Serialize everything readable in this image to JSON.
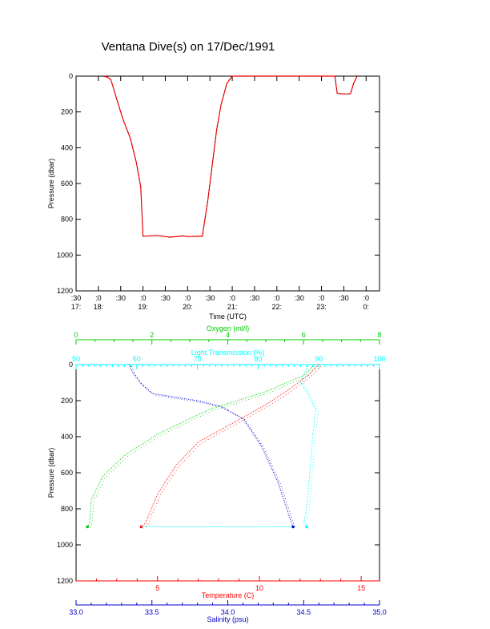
{
  "title": "Ventana Dive(s) on 17/Dec/1991",
  "colors": {
    "axis": "#000000",
    "depth_trace": "#ff0000",
    "depth_marks": "#000000",
    "oxygen": "#00cc00",
    "transmission": "#00ffff",
    "temperature": "#ff0000",
    "salinity": "#0000cc"
  },
  "chart_data": [
    {
      "type": "line",
      "title": "Ventana Dive(s) on 17/Dec/1991",
      "xlabel": "Time (UTC)",
      "ylabel": "Pressure (dbar)",
      "x_ticks_top": [
        ":30",
        ":0",
        ":30",
        ":0",
        ":30",
        ":0",
        ":30",
        ":0",
        ":30",
        ":0",
        ":30",
        ":0",
        ":30",
        ":0"
      ],
      "x_ticks_bottom": [
        "17:",
        "18:",
        "",
        "19:",
        "",
        "20:",
        "",
        "21:",
        "",
        "22:",
        "",
        "23:",
        "",
        "0:"
      ],
      "x_tick_hours": [
        17.5,
        18.0,
        18.5,
        19.0,
        19.5,
        20.0,
        20.5,
        21.0,
        21.5,
        22.0,
        22.5,
        23.0,
        23.5,
        24.0
      ],
      "xlim_hours": [
        17.5,
        24.3
      ],
      "ylim": [
        1200,
        0
      ],
      "y_ticks": [
        "0",
        "200",
        "400",
        "600",
        "800",
        "1000",
        "1200"
      ],
      "series": [
        {
          "x": [
            18.1,
            18.2,
            18.28,
            18.4,
            18.55,
            18.72,
            18.85,
            18.95,
            19.0,
            19.3,
            19.6,
            19.9,
            20.0,
            20.25,
            20.33,
            20.45,
            20.55,
            20.65,
            20.75,
            20.88,
            21.0,
            21.1,
            21.4,
            21.8,
            22.2,
            22.6,
            23.0,
            23.3,
            23.35,
            23.4,
            23.55,
            23.65,
            23.72,
            23.8
          ],
          "y": [
            0,
            5,
            20,
            120,
            240,
            350,
            480,
            620,
            895,
            890,
            900,
            893,
            897,
            895,
            895,
            700,
            500,
            300,
            160,
            40,
            0,
            0,
            0,
            0,
            0,
            0,
            0,
            0,
            95,
            98,
            100,
            98,
            40,
            0
          ]
        }
      ]
    },
    {
      "type": "line",
      "ylabel": "Pressure (dbar)",
      "ylim": [
        1200,
        0
      ],
      "y_ticks": [
        "0",
        "200",
        "400",
        "600",
        "800",
        "1000",
        "1200"
      ],
      "axes": {
        "oxygen": {
          "label": "Oxygen (ml/l)",
          "range": [
            0,
            8
          ],
          "ticks": [
            "0",
            "2",
            "4",
            "6",
            "8"
          ]
        },
        "transmission": {
          "label": "Light Transmission (%)",
          "range": [
            50,
            100
          ],
          "ticks": [
            "50",
            "60",
            "70",
            "80",
            "90",
            "100"
          ]
        },
        "temperature": {
          "label": "Temperature (C)",
          "range": [
            1,
            15.9
          ],
          "ticks": [
            "5",
            "10",
            "15"
          ]
        },
        "salinity": {
          "label": "Salinity (psu)",
          "range": [
            33.0,
            35.0
          ],
          "ticks": [
            "33.0",
            "33.5",
            "34.0",
            "34.5",
            "35.0"
          ]
        }
      },
      "series": [
        {
          "name": "Oxygen (ml/l)",
          "values": [
            [
              6.3,
              0
            ],
            [
              6.0,
              60
            ],
            [
              5.0,
              150
            ],
            [
              3.5,
              250
            ],
            [
              2.2,
              380
            ],
            [
              1.3,
              500
            ],
            [
              0.7,
              620
            ],
            [
              0.4,
              750
            ],
            [
              0.35,
              880
            ],
            [
              0.3,
              900
            ]
          ]
        },
        {
          "name": "Light Transmission (%)",
          "values": [
            [
              88.5,
              0
            ],
            [
              87.5,
              50
            ],
            [
              87.0,
              100
            ],
            [
              88.0,
              150
            ],
            [
              89.5,
              250
            ],
            [
              89.0,
              400
            ],
            [
              88.5,
              600
            ],
            [
              88.0,
              800
            ],
            [
              87.5,
              880
            ],
            [
              88.0,
              900
            ]
          ]
        },
        {
          "name": "Temperature (C)",
          "values": [
            [
              12.9,
              0
            ],
            [
              12.4,
              60
            ],
            [
              11.3,
              150
            ],
            [
              10.2,
              230
            ],
            [
              8.6,
              330
            ],
            [
              7.0,
              430
            ],
            [
              5.9,
              560
            ],
            [
              5.0,
              720
            ],
            [
              4.4,
              880
            ],
            [
              4.2,
              900
            ]
          ]
        },
        {
          "name": "Salinity (psu)",
          "values": [
            [
              33.35,
              0
            ],
            [
              33.37,
              40
            ],
            [
              33.42,
              100
            ],
            [
              33.5,
              160
            ],
            [
              33.8,
              200
            ],
            [
              33.95,
              230
            ],
            [
              34.1,
              300
            ],
            [
              34.22,
              450
            ],
            [
              34.33,
              650
            ],
            [
              34.42,
              880
            ],
            [
              34.43,
              900
            ]
          ]
        }
      ]
    }
  ]
}
